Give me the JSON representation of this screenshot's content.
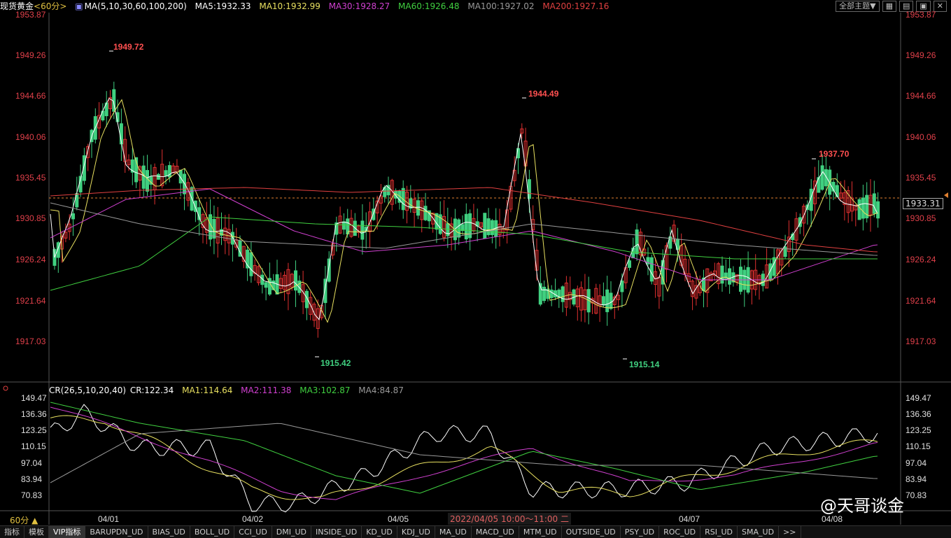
{
  "header": {
    "symbol": "现货黄金",
    "period": "<60分>",
    "ma_params": "MA(5,10,30,60,100,200)",
    "ma5": "MA5:1932.33",
    "ma10": "MA10:1932.99",
    "ma30": "MA30:1928.27",
    "ma60": "MA60:1926.48",
    "ma100": "MA100:1927.02",
    "ma200": "MA200:1927.16"
  },
  "controls": {
    "theme": "全部主题▼"
  },
  "price_axis": [
    "1953.87",
    "1949.26",
    "1944.66",
    "1940.06",
    "1935.45",
    "1930.85",
    "1926.24",
    "1921.64",
    "1917.03"
  ],
  "peaks": {
    "high1": "1949.72",
    "low1": "1915.42",
    "high2": "1944.49",
    "low2": "1915.14",
    "high3": "1937.70"
  },
  "current_price": "1933.31",
  "indicator": {
    "params": "CR(26,5,10,20,40)",
    "cr": "CR:122.34",
    "ma1": "MA1:114.64",
    "ma2": "MA2:111.38",
    "ma3": "MA3:102.87",
    "ma4": "MA4:84.87",
    "axis": [
      "149.47",
      "136.36",
      "123.25",
      "110.15",
      "97.04",
      "83.94",
      "70.83"
    ]
  },
  "dates": [
    "04/01",
    "04/02",
    "04/05",
    "04/07",
    "04/08"
  ],
  "crosshair_time": "2022/04/05 10:00～11:00 二",
  "timeframe": "60分 ▲",
  "watermark": "@天哥谈金",
  "bottom_tabs": [
    "指标",
    "模板",
    "VIP指标",
    "BARUPDN_UD",
    "BIAS_UD",
    "BOLL_UD",
    "CCI_UD",
    "DMI_UD",
    "INSIDE_UD",
    "KD_UD",
    "KDJ_UD",
    "MA_UD",
    "MACD_UD",
    "MTM_UD",
    "OUTSIDE_UD",
    "PSY_UD",
    "ROC_UD",
    "RSI_UD",
    "SMA_UD",
    ">>"
  ],
  "colors": {
    "up": "#e03030",
    "down": "#40d080",
    "ma5": "#ffffff",
    "ma10": "#e8e060",
    "ma30": "#d040d0",
    "ma60": "#40d040",
    "ma100": "#999999",
    "ma200": "#e04040"
  }
}
